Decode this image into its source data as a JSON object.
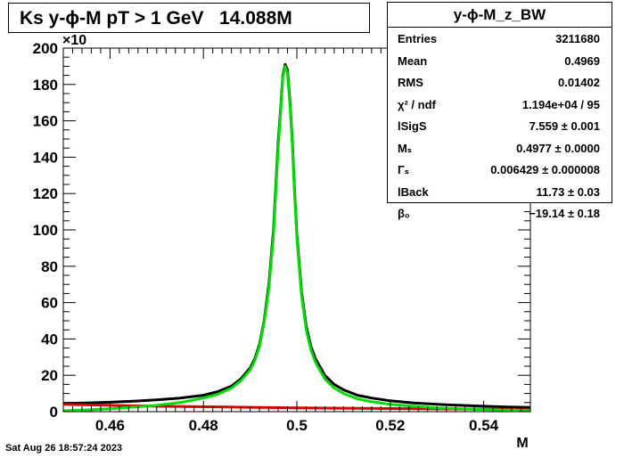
{
  "title": "Ks y-ϕ-M pT > 1 GeV   14.088M",
  "stats_box": {
    "title": "y-ϕ-M_z_BW",
    "rows": [
      {
        "name": "Entries",
        "value": "3211680"
      },
      {
        "name": "Mean",
        "value": "0.4969"
      },
      {
        "name": "RMS",
        "value": "0.01402"
      },
      {
        "name": "χ² / ndf",
        "value": "1.194e+04 / 95"
      },
      {
        "name": "lSigS",
        "value": "7.559 ± 0.001"
      },
      {
        "name": "Mₛ",
        "value": "0.4977 ± 0.0000"
      },
      {
        "name": "Γₛ",
        "value": "0.006429 ± 0.000008"
      },
      {
        "name": "lBack",
        "value": "11.73 ± 0.03"
      },
      {
        "name": "β₀",
        "value": "−19.14 ± 0.18"
      }
    ]
  },
  "date_label": "Sat Aug 26 18:57:24 2023",
  "colors": {
    "histogram": "#000000",
    "fit": "#00dd00",
    "background": "#dd0000"
  },
  "chart_data": {
    "type": "line",
    "xlabel": "M",
    "ylabel": "",
    "y_multiplier_label": "×10",
    "xlim": [
      0.45,
      0.55
    ],
    "ylim": [
      0,
      200
    ],
    "xticks": [
      "0.46",
      "0.48",
      "0.5",
      "0.52",
      "0.54"
    ],
    "yticks": [
      "0",
      "20",
      "40",
      "60",
      "80",
      "100",
      "120",
      "140",
      "160",
      "180",
      "200"
    ],
    "series": [
      {
        "role": "histogram",
        "x": [
          0.45,
          0.455,
          0.46,
          0.465,
          0.47,
          0.475,
          0.48,
          0.483,
          0.486,
          0.488,
          0.49,
          0.491,
          0.492,
          0.493,
          0.494,
          0.495,
          0.496,
          0.4965,
          0.497,
          0.4975,
          0.498,
          0.4985,
          0.499,
          0.4995,
          0.5,
          0.501,
          0.502,
          0.503,
          0.504,
          0.506,
          0.508,
          0.51,
          0.513,
          0.516,
          0.52,
          0.525,
          0.53,
          0.535,
          0.54,
          0.545,
          0.55
        ],
        "y": [
          4.5,
          4.8,
          5.2,
          5.8,
          6.5,
          7.5,
          9.0,
          11,
          14,
          18,
          24,
          29,
          37,
          50,
          70,
          100,
          148,
          166,
          185,
          191,
          188,
          172,
          150,
          122,
          98,
          66,
          47,
          36,
          29,
          20,
          15,
          12,
          9,
          7.5,
          6.0,
          4.8,
          4.0,
          3.5,
          3.0,
          2.6,
          2.3
        ]
      },
      {
        "role": "fit",
        "x": [
          0.45,
          0.455,
          0.46,
          0.465,
          0.47,
          0.475,
          0.48,
          0.483,
          0.486,
          0.488,
          0.49,
          0.491,
          0.492,
          0.493,
          0.494,
          0.495,
          0.496,
          0.4965,
          0.497,
          0.4975,
          0.498,
          0.4985,
          0.499,
          0.4995,
          0.5,
          0.501,
          0.502,
          0.503,
          0.504,
          0.506,
          0.508,
          0.51,
          0.513,
          0.516,
          0.52,
          0.525,
          0.53,
          0.535,
          0.54,
          0.545,
          0.55
        ],
        "y": [
          0.5,
          1.0,
          1.6,
          2.5,
          3.5,
          5.0,
          7.5,
          9.5,
          13,
          17,
          23,
          28,
          36,
          49,
          68,
          97,
          145,
          164,
          184,
          190,
          186,
          170,
          148,
          120,
          96,
          64,
          45,
          34,
          27,
          18,
          13,
          10,
          7,
          5.5,
          4,
          3,
          2,
          1.6,
          1.2,
          0.9,
          0.6
        ]
      },
      {
        "role": "background",
        "x": [
          0.45,
          0.46,
          0.47,
          0.48,
          0.49,
          0.5,
          0.51,
          0.52,
          0.53,
          0.54,
          0.55
        ],
        "y": [
          4.0,
          3.5,
          3.0,
          2.7,
          2.4,
          2.1,
          1.9,
          1.7,
          1.5,
          1.3,
          1.1
        ]
      }
    ]
  }
}
